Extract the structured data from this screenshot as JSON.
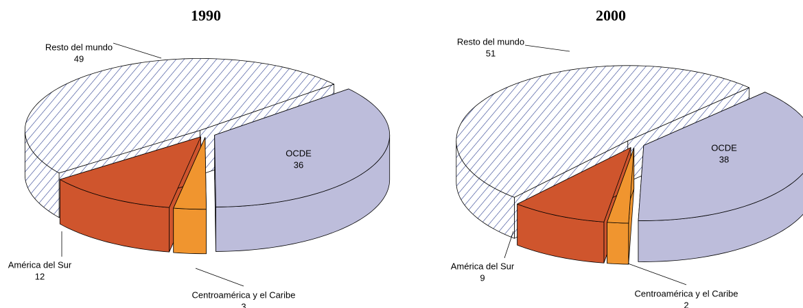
{
  "chart_data": [
    {
      "type": "pie",
      "title": "1990",
      "labels": [
        "OCDE",
        "Centroamérica y el Caribe",
        "América del Sur",
        "Resto del mundo"
      ],
      "values": [
        36,
        3,
        12,
        49
      ],
      "colors": [
        "#bdbddb",
        "#f0952f",
        "#cf552d",
        "#2b3d8f"
      ],
      "patterns": [
        null,
        null,
        null,
        "hatch"
      ]
    },
    {
      "type": "pie",
      "title": "2000",
      "labels": [
        "OCDE",
        "Centroamérica y el Caribe",
        "América del Sur",
        "Resto del mundo"
      ],
      "values": [
        38,
        2,
        9,
        51
      ],
      "colors": [
        "#bdbddb",
        "#f0952f",
        "#cf552d",
        "#2b3d8f"
      ],
      "patterns": [
        null,
        null,
        null,
        "hatch"
      ]
    }
  ]
}
